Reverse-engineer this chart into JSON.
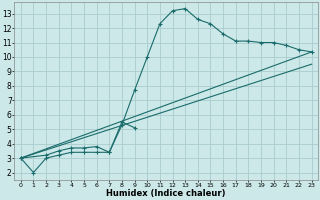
{
  "xlabel": "Humidex (Indice chaleur)",
  "bg_color": "#cce8e8",
  "grid_color": "#aacccc",
  "line_color": "#1a6b6b",
  "xlim": [
    -0.5,
    23.5
  ],
  "ylim": [
    1.5,
    13.8
  ],
  "xticks": [
    0,
    1,
    2,
    3,
    4,
    5,
    6,
    7,
    8,
    9,
    10,
    11,
    12,
    13,
    14,
    15,
    16,
    17,
    18,
    19,
    20,
    21,
    22,
    23
  ],
  "yticks": [
    2,
    3,
    4,
    5,
    6,
    7,
    8,
    9,
    10,
    11,
    12,
    13
  ],
  "line1_x": [
    0,
    1,
    2,
    3,
    4,
    5,
    6,
    7,
    8,
    9,
    10,
    11,
    12,
    13,
    14,
    15,
    16,
    17,
    18,
    19,
    20,
    21,
    22,
    23
  ],
  "line1_y": [
    3,
    2,
    3,
    3.2,
    3.4,
    3.4,
    3.4,
    3.4,
    5.3,
    7.7,
    10.0,
    12.3,
    13.2,
    13.35,
    12.6,
    12.3,
    11.6,
    11.1,
    11.1,
    11.0,
    11.0,
    10.8,
    10.5,
    10.35
  ],
  "line2_x": [
    0,
    2,
    3,
    4,
    5,
    6,
    7,
    8,
    9
  ],
  "line2_y": [
    3,
    3.2,
    3.5,
    3.7,
    3.7,
    3.8,
    3.4,
    5.5,
    5.1
  ],
  "line3_x": [
    0,
    23
  ],
  "line3_y": [
    3,
    9.5
  ],
  "line4_x": [
    0,
    23
  ],
  "line4_y": [
    3,
    10.35
  ]
}
